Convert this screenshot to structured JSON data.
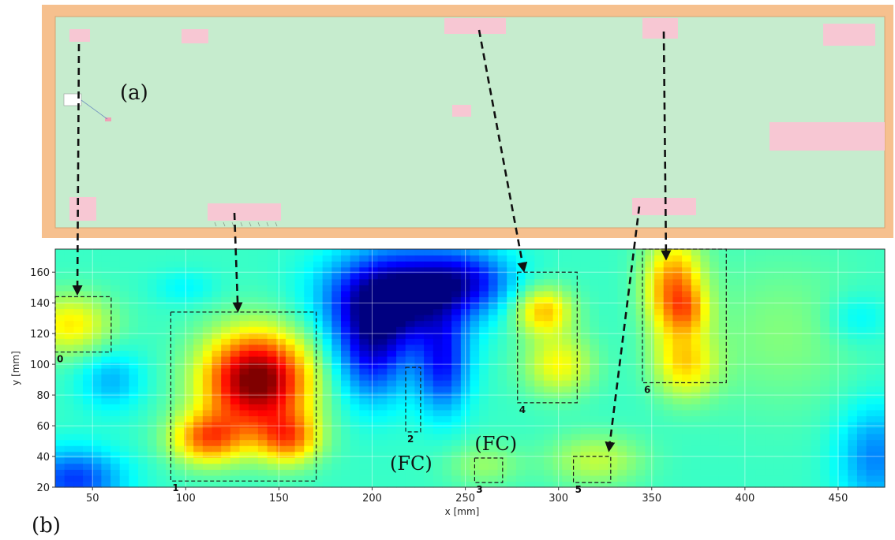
{
  "panel_a": {
    "label": "(a)",
    "colors": {
      "board": "#c6ecce",
      "frame": "#f6c08e",
      "component": "#f7c7d3"
    }
  },
  "panel_b": {
    "label": "(b)"
  },
  "chart_data": {
    "type": "heatmap",
    "title": "",
    "xlabel": "x [mm]",
    "ylabel": "y [mm]",
    "xlim": [
      30,
      475
    ],
    "ylim": [
      20,
      175
    ],
    "xticks": [
      50,
      100,
      150,
      200,
      250,
      300,
      350,
      400,
      450
    ],
    "yticks": [
      20,
      40,
      60,
      80,
      100,
      120,
      140,
      160
    ],
    "grid": true,
    "colormap": "jet",
    "hotspots": [
      {
        "x": 138,
        "y": 90,
        "sx": 20,
        "sy": 22,
        "amp": 1.0
      },
      {
        "x": 112,
        "y": 52,
        "sx": 14,
        "sy": 12,
        "amp": 0.55
      },
      {
        "x": 155,
        "y": 52,
        "sx": 12,
        "sy": 12,
        "amp": 0.5
      },
      {
        "x": 38,
        "y": 126,
        "sx": 16,
        "sy": 14,
        "amp": 0.35
      },
      {
        "x": 292,
        "y": 135,
        "sx": 11,
        "sy": 11,
        "amp": 0.42
      },
      {
        "x": 300,
        "y": 100,
        "sx": 13,
        "sy": 14,
        "amp": 0.32
      },
      {
        "x": 362,
        "y": 150,
        "sx": 11,
        "sy": 22,
        "amp": 0.55
      },
      {
        "x": 368,
        "y": 100,
        "sx": 12,
        "sy": 16,
        "amp": 0.35
      },
      {
        "x": 320,
        "y": 38,
        "sx": 18,
        "sy": 12,
        "amp": 0.22
      },
      {
        "x": 260,
        "y": 35,
        "sx": 14,
        "sy": 10,
        "amp": 0.15
      },
      {
        "x": 420,
        "y": 120,
        "sx": 30,
        "sy": 35,
        "amp": 0.12
      },
      {
        "x": 370,
        "y": 135,
        "sx": 8,
        "sy": 10,
        "amp": 0.2
      }
    ],
    "coldspots": [
      {
        "x": 213,
        "y": 145,
        "sx": 25,
        "sy": 20,
        "amp": 0.9
      },
      {
        "x": 200,
        "y": 110,
        "sx": 14,
        "sy": 24,
        "amp": 0.6
      },
      {
        "x": 238,
        "y": 100,
        "sx": 10,
        "sy": 22,
        "amp": 0.55
      },
      {
        "x": 250,
        "y": 155,
        "sx": 18,
        "sy": 14,
        "amp": 0.5
      },
      {
        "x": 40,
        "y": 25,
        "sx": 18,
        "sy": 14,
        "amp": 0.5
      },
      {
        "x": 470,
        "y": 40,
        "sx": 14,
        "sy": 24,
        "amp": 0.35
      },
      {
        "x": 60,
        "y": 90,
        "sx": 12,
        "sy": 14,
        "amp": 0.25
      },
      {
        "x": 460,
        "y": 130,
        "sx": 12,
        "sy": 12,
        "amp": 0.15
      },
      {
        "x": 100,
        "y": 150,
        "sx": 12,
        "sy": 8,
        "amp": 0.12
      }
    ],
    "regions": [
      {
        "id": "0",
        "x0": 30,
        "y0": 108,
        "x1": 60,
        "y1": 144
      },
      {
        "id": "1",
        "x0": 92,
        "y0": 24,
        "x1": 170,
        "y1": 134
      },
      {
        "id": "2",
        "x0": 218,
        "y0": 56,
        "x1": 226,
        "y1": 98
      },
      {
        "id": "3",
        "x0": 255,
        "y0": 23,
        "x1": 270,
        "y1": 39
      },
      {
        "id": "4",
        "x0": 278,
        "y0": 75,
        "x1": 310,
        "y1": 160
      },
      {
        "id": "5",
        "x0": 308,
        "y0": 23,
        "x1": 328,
        "y1": 40
      },
      {
        "id": "6",
        "x0": 345,
        "y0": 88,
        "x1": 390,
        "y1": 175
      }
    ],
    "annotations": [
      {
        "text": "(FC)",
        "near_region": "2"
      },
      {
        "text": "(FC)",
        "near_region": "3"
      }
    ]
  }
}
